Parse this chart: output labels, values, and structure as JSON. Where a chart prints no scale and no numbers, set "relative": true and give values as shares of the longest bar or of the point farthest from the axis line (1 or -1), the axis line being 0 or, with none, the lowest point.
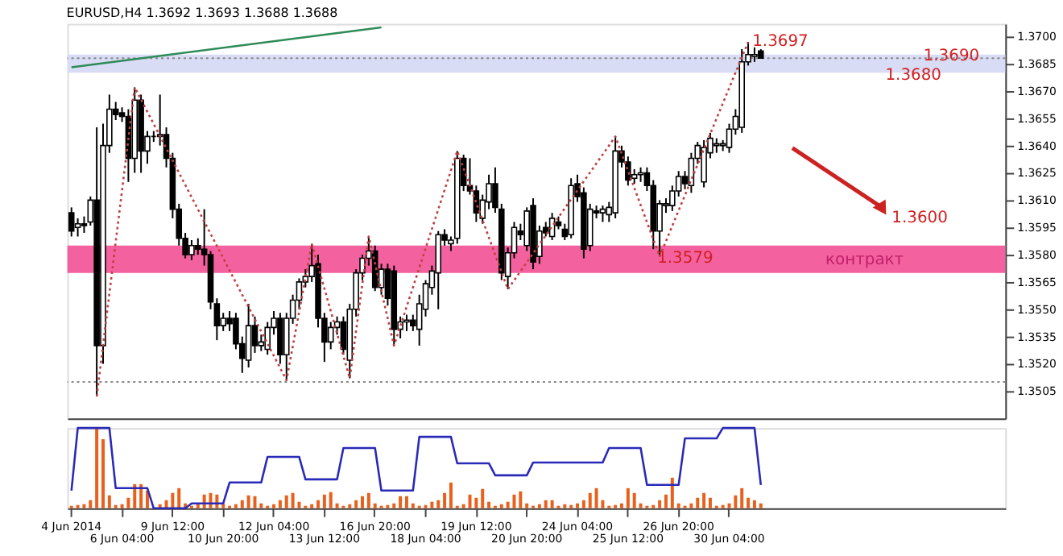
{
  "chart_data": [
    {
      "type": "candlestick",
      "title": "EURUSD,H4  1.3692 1.3693 1.3688 1.3688",
      "color": "#000000",
      "categories": [
        null,
        null,
        null,
        null,
        null,
        null,
        null,
        null,
        null,
        null,
        null,
        null,
        null,
        null,
        null,
        null,
        null,
        null,
        null,
        null,
        null,
        null,
        null,
        null,
        null,
        null,
        null,
        null,
        null,
        null,
        null,
        null,
        null,
        null,
        null,
        null,
        null,
        null,
        null,
        null,
        null,
        null,
        null,
        null,
        null,
        null,
        null,
        null,
        null,
        null,
        null,
        null,
        null,
        null,
        null,
        null,
        null,
        null,
        null,
        null,
        null,
        null,
        null,
        null,
        null,
        null,
        null,
        null,
        null,
        null,
        null,
        null,
        null,
        null,
        null,
        null,
        null,
        null,
        null,
        null,
        null,
        null,
        null,
        null,
        null,
        null,
        null,
        null,
        null,
        null,
        null,
        null,
        null,
        null,
        null,
        null,
        null,
        null,
        null,
        null,
        null,
        null,
        null,
        null,
        null,
        null,
        null,
        null,
        null,
        null,
        null,
        null,
        null,
        null,
        null,
        null,
        null,
        null,
        null,
        null,
        null,
        null,
        null,
        null,
        null,
        null,
        null,
        null,
        null,
        null,
        null,
        null,
        null,
        null,
        null,
        null,
        null,
        null,
        null,
        null,
        null,
        null,
        null,
        null,
        null,
        null,
        null,
        null
      ],
      "ohlc": [
        [
          1.3603,
          1.3606,
          1.359,
          1.3593
        ],
        [
          1.3595,
          1.36,
          1.359,
          1.3597
        ],
        [
          1.3597,
          1.3601,
          1.3592,
          1.3596
        ],
        [
          1.3598,
          1.3612,
          1.3596,
          1.361
        ],
        [
          1.361,
          1.365,
          1.3502,
          1.353
        ],
        [
          1.353,
          1.3652,
          1.352,
          1.364
        ],
        [
          1.364,
          1.3668,
          1.3636,
          1.366
        ],
        [
          1.366,
          1.3664,
          1.3654,
          1.3657
        ],
        [
          1.3658,
          1.3661,
          1.3653,
          1.3656
        ],
        [
          1.3656,
          1.366,
          1.362,
          1.3633
        ],
        [
          1.3633,
          1.3672,
          1.3625,
          1.3665
        ],
        [
          1.3665,
          1.3668,
          1.3625,
          1.3637
        ],
        [
          1.3637,
          1.3648,
          1.363,
          1.3645
        ],
        [
          1.3645,
          1.3648,
          1.3642,
          1.3645
        ],
        [
          1.3645,
          1.3668,
          1.364,
          1.3646
        ],
        [
          1.3646,
          1.365,
          1.3628,
          1.3633
        ],
        [
          1.3633,
          1.3636,
          1.36,
          1.3605
        ],
        [
          1.3605,
          1.3608,
          1.3585,
          1.3589
        ],
        [
          1.3589,
          1.3592,
          1.3578,
          1.358
        ],
        [
          1.358,
          1.3588,
          1.3577,
          1.3585
        ],
        [
          1.3585,
          1.3589,
          1.358,
          1.3583
        ],
        [
          1.3583,
          1.3605,
          1.3574,
          1.358
        ],
        [
          1.358,
          1.3582,
          1.355,
          1.3554
        ],
        [
          1.3553,
          1.3556,
          1.3533,
          1.3541
        ],
        [
          1.3541,
          1.3548,
          1.3538,
          1.3545
        ],
        [
          1.3545,
          1.3549,
          1.3538,
          1.3542
        ],
        [
          1.3545,
          1.3548,
          1.3528,
          1.3531
        ],
        [
          1.3531,
          1.3535,
          1.3515,
          1.3523
        ],
        [
          1.3522,
          1.3553,
          1.3518,
          1.3541
        ],
        [
          1.3541,
          1.3546,
          1.3526,
          1.353
        ],
        [
          1.353,
          1.3536,
          1.3527,
          1.3532
        ],
        [
          1.3528,
          1.3543,
          1.3525,
          1.354
        ],
        [
          1.354,
          1.3549,
          1.3536,
          1.3545
        ],
        [
          1.3545,
          1.3548,
          1.352,
          1.3525
        ],
        [
          1.3525,
          1.3548,
          1.3511,
          1.3545
        ],
        [
          1.3545,
          1.3558,
          1.3542,
          1.3555
        ],
        [
          1.3555,
          1.3567,
          1.355,
          1.3565
        ],
        [
          1.3565,
          1.3572,
          1.3562,
          1.3568
        ],
        [
          1.3568,
          1.3586,
          1.3565,
          1.3574
        ],
        [
          1.3575,
          1.358,
          1.354,
          1.3545
        ],
        [
          1.3545,
          1.3548,
          1.3521,
          1.3532
        ],
        [
          1.3532,
          1.3543,
          1.3528,
          1.354
        ],
        [
          1.354,
          1.3546,
          1.3536,
          1.3543
        ],
        [
          1.3543,
          1.3546,
          1.3525,
          1.3528
        ],
        [
          1.3522,
          1.3553,
          1.3512,
          1.355
        ],
        [
          1.355,
          1.3572,
          1.3546,
          1.357
        ],
        [
          1.357,
          1.358,
          1.3566,
          1.3578
        ],
        [
          1.3578,
          1.359,
          1.3574,
          1.3582
        ],
        [
          1.3582,
          1.3585,
          1.356,
          1.3562
        ],
        [
          1.3562,
          1.3575,
          1.3558,
          1.3572
        ],
        [
          1.3572,
          1.3575,
          1.3552,
          1.3556
        ],
        [
          1.3571,
          1.3574,
          1.353,
          1.3539
        ],
        [
          1.3539,
          1.3546,
          1.3534,
          1.3543
        ],
        [
          1.3543,
          1.3547,
          1.3538,
          1.3544
        ],
        [
          1.3544,
          1.3547,
          1.3538,
          1.3541
        ],
        [
          1.3539,
          1.3558,
          1.353,
          1.3553
        ],
        [
          1.355,
          1.3566,
          1.3546,
          1.3564
        ],
        [
          1.3562,
          1.3574,
          1.3558,
          1.3571
        ],
        [
          1.357,
          1.3593,
          1.355,
          1.3591
        ],
        [
          1.3591,
          1.3594,
          1.3585,
          1.3588
        ],
        [
          1.3586,
          1.359,
          1.3582,
          1.3588
        ],
        [
          1.3589,
          1.3637,
          1.3586,
          1.3633
        ],
        [
          1.3633,
          1.3635,
          1.3615,
          1.3618
        ],
        [
          1.3618,
          1.3633,
          1.3613,
          1.3615
        ],
        [
          1.3615,
          1.3618,
          1.3598,
          1.3603
        ],
        [
          1.36,
          1.3613,
          1.3597,
          1.361
        ],
        [
          1.3609,
          1.3624,
          1.3605,
          1.3619
        ],
        [
          1.3619,
          1.3628,
          1.3603,
          1.3606
        ],
        [
          1.3605,
          1.3608,
          1.3566,
          1.357
        ],
        [
          1.3568,
          1.3584,
          1.3561,
          1.3581
        ],
        [
          1.3581,
          1.3598,
          1.3578,
          1.3595
        ],
        [
          1.3593,
          1.3597,
          1.3588,
          1.3591
        ],
        [
          1.3585,
          1.3606,
          1.3582,
          1.3604
        ],
        [
          1.3607,
          1.3611,
          1.3572,
          1.3576
        ],
        [
          1.3579,
          1.3596,
          1.3575,
          1.3593
        ],
        [
          1.3595,
          1.3598,
          1.359,
          1.3592
        ],
        [
          1.359,
          1.3603,
          1.3588,
          1.36
        ],
        [
          1.3598,
          1.3601,
          1.3594,
          1.3596
        ],
        [
          1.3594,
          1.3597,
          1.3588,
          1.359
        ],
        [
          1.3591,
          1.3622,
          1.3589,
          1.3618
        ],
        [
          1.3619,
          1.3624,
          1.3609,
          1.3612
        ],
        [
          1.3614,
          1.3617,
          1.3578,
          1.3583
        ],
        [
          1.3585,
          1.3608,
          1.3582,
          1.3605
        ],
        [
          1.3604,
          1.3607,
          1.36,
          1.3603
        ],
        [
          1.3603,
          1.3607,
          1.3598,
          1.3605
        ],
        [
          1.3602,
          1.3609,
          1.3598,
          1.3606
        ],
        [
          1.3603,
          1.3645,
          1.36,
          1.3637
        ],
        [
          1.3637,
          1.364,
          1.3628,
          1.3631
        ],
        [
          1.3631,
          1.3634,
          1.3618,
          1.3621
        ],
        [
          1.3622,
          1.3627,
          1.3619,
          1.3624
        ],
        [
          1.3624,
          1.3628,
          1.362,
          1.3625
        ],
        [
          1.3625,
          1.3628,
          1.3615,
          1.3618
        ],
        [
          1.3618,
          1.3621,
          1.3583,
          1.3593
        ],
        [
          1.3593,
          1.361,
          1.3579,
          1.3608
        ],
        [
          1.3607,
          1.3611,
          1.3603,
          1.3608
        ],
        [
          1.3607,
          1.3618,
          1.3604,
          1.3615
        ],
        [
          1.3615,
          1.3626,
          1.3612,
          1.3623
        ],
        [
          1.3623,
          1.3626,
          1.3616,
          1.3619
        ],
        [
          1.3618,
          1.3636,
          1.3614,
          1.3633
        ],
        [
          1.3633,
          1.3642,
          1.363,
          1.364
        ],
        [
          1.362,
          1.3643,
          1.3617,
          1.3639
        ],
        [
          1.3636,
          1.3647,
          1.3633,
          1.3644
        ],
        [
          1.364,
          1.3644,
          1.3636,
          1.3641
        ],
        [
          1.364,
          1.3643,
          1.3637,
          1.3641
        ],
        [
          1.3639,
          1.3652,
          1.3636,
          1.3649
        ],
        [
          1.3649,
          1.366,
          1.3646,
          1.3656
        ],
        [
          1.365,
          1.3693,
          1.3647,
          1.3686
        ],
        [
          1.3686,
          1.3697,
          1.3684,
          1.369
        ],
        [
          1.3689,
          1.3694,
          1.3686,
          1.369
        ],
        [
          1.3692,
          1.3693,
          1.3688,
          1.3688
        ],
        null,
        null,
        null,
        null,
        null,
        null,
        null,
        null,
        null,
        null,
        null,
        null,
        null,
        null,
        null,
        null,
        null,
        null,
        null,
        null,
        null,
        null,
        null,
        null,
        null,
        null,
        null,
        null,
        null,
        null,
        null,
        null,
        null,
        null,
        null,
        null,
        null,
        null
      ],
      "series": [
        {
          "type": "line",
          "color": "#2e8b57",
          "line_style": "solid",
          "values": [
            1.3683,
            null,
            null,
            null,
            null,
            null,
            null,
            null,
            null,
            null,
            null,
            null,
            null,
            null,
            null,
            null,
            null,
            null,
            null,
            null,
            null,
            null,
            null,
            null,
            null,
            null,
            null,
            null,
            null,
            null,
            null,
            null,
            null,
            null,
            null,
            null,
            null,
            null,
            null,
            null,
            null,
            null,
            null,
            null,
            null,
            null,
            null,
            null,
            null,
            1.3705,
            null,
            null,
            null,
            null,
            null,
            null,
            null,
            null,
            null,
            null,
            null,
            null,
            null,
            null,
            null,
            null,
            null,
            null,
            null,
            null,
            null,
            null,
            null,
            null,
            null,
            null,
            null,
            null,
            null,
            null,
            null,
            null,
            null,
            null,
            null,
            null,
            null,
            null,
            null,
            null,
            null,
            null,
            null,
            null,
            null,
            null,
            null,
            null,
            null,
            null,
            null,
            null,
            null,
            null,
            null,
            null,
            null,
            null,
            null,
            null,
            null,
            null,
            null,
            null,
            null,
            null,
            null,
            null,
            null,
            null,
            null,
            null,
            null,
            null,
            null,
            null,
            null,
            null,
            null,
            null,
            null,
            null,
            null,
            null,
            null,
            null,
            null,
            null,
            null,
            null,
            null,
            null,
            null,
            null,
            null,
            null,
            null,
            null
          ]
        },
        {
          "type": "line",
          "color": "#c04040",
          "line_style": "dotted",
          "values": [
            null,
            null,
            null,
            null,
            1.3502,
            null,
            null,
            null,
            null,
            null,
            1.3672,
            null,
            null,
            null,
            null,
            null,
            null,
            null,
            null,
            null,
            null,
            null,
            null,
            null,
            null,
            null,
            null,
            null,
            null,
            null,
            null,
            null,
            null,
            null,
            1.3511,
            null,
            null,
            null,
            1.3586,
            null,
            null,
            null,
            null,
            null,
            1.3512,
            null,
            null,
            1.359,
            null,
            null,
            null,
            1.353,
            null,
            null,
            null,
            null,
            null,
            null,
            null,
            null,
            null,
            1.3637,
            null,
            null,
            null,
            null,
            null,
            null,
            null,
            1.3561,
            null,
            null,
            null,
            null,
            null,
            null,
            null,
            null,
            null,
            null,
            null,
            null,
            null,
            null,
            null,
            null,
            1.3645,
            null,
            null,
            null,
            null,
            null,
            null,
            1.3579,
            null,
            null,
            null,
            null,
            null,
            null,
            null,
            null,
            null,
            null,
            null,
            null,
            null,
            1.3697,
            null,
            null,
            null,
            null,
            null,
            null,
            null,
            null,
            null,
            null,
            null,
            null,
            null,
            null,
            null,
            null,
            null,
            null,
            null,
            null,
            null,
            null,
            null,
            null,
            null,
            null,
            null,
            null,
            null,
            null,
            null,
            null,
            null,
            null,
            null,
            null,
            null,
            null,
            null,
            null
          ]
        }
      ],
      "ylim": [
        1.349,
        1.3707
      ],
      "yticks": [
        {
          "value": 1.3505,
          "label": "1.3505"
        },
        {
          "value": 1.352,
          "label": "1.3520"
        },
        {
          "value": 1.3535,
          "label": "1.3535"
        },
        {
          "value": 1.355,
          "label": "1.3550"
        },
        {
          "value": 1.3565,
          "label": "1.3565"
        },
        {
          "value": 1.358,
          "label": "1.3580"
        },
        {
          "value": 1.3595,
          "label": "1.3595"
        },
        {
          "value": 1.361,
          "label": "1.3610"
        },
        {
          "value": 1.3625,
          "label": "1.3625"
        },
        {
          "value": 1.364,
          "label": "1.3640"
        },
        {
          "value": 1.3655,
          "label": "1.3655"
        },
        {
          "value": 1.367,
          "label": "1.3670"
        },
        {
          "value": 1.3685,
          "label": "1.3685"
        },
        {
          "value": 1.37,
          "label": "1.3700"
        }
      ],
      "tick_labels": "y",
      "ref_lines": [
        {
          "axis": "y",
          "value": 1.3688,
          "color": "#888888",
          "line_style": "dotted"
        },
        {
          "axis": "y",
          "value": 1.351,
          "color": "#888888",
          "line_style": "dotted"
        }
      ],
      "bands": [
        {
          "axis": "y",
          "from": 1.357,
          "to": 1.3585,
          "label": "контракт",
          "color": "#f4619f"
        },
        {
          "axis": "y",
          "from": 1.368,
          "to": 1.369,
          "color": "#d8dcf4"
        }
      ],
      "annotations": [
        "1.3697",
        "1.3690",
        "1.3680",
        "1.3600",
        "1.3579"
      ]
    },
    {
      "type": "bar",
      "relative": true,
      "tick_labels": "x",
      "categories": [
        "4 Jun 2014",
        null,
        null,
        null,
        null,
        null,
        null,
        null,
        "6 Jun 04:00",
        null,
        null,
        null,
        null,
        null,
        null,
        null,
        "9 Jun 12:00",
        null,
        null,
        null,
        null,
        null,
        null,
        null,
        "10 Jun 20:00",
        null,
        null,
        null,
        null,
        null,
        null,
        null,
        "12 Jun 04:00",
        null,
        null,
        null,
        null,
        null,
        null,
        null,
        "13 Jun 12:00",
        null,
        null,
        null,
        null,
        null,
        null,
        null,
        "16 Jun 20:00",
        null,
        null,
        null,
        null,
        null,
        null,
        null,
        "18 Jun 04:00",
        null,
        null,
        null,
        null,
        null,
        null,
        null,
        "19 Jun 12:00",
        null,
        null,
        null,
        null,
        null,
        null,
        null,
        "20 Jun 20:00",
        null,
        null,
        null,
        null,
        null,
        null,
        null,
        "24 Jun 04:00",
        null,
        null,
        null,
        null,
        null,
        null,
        null,
        "25 Jun 12:00",
        null,
        null,
        null,
        null,
        null,
        null,
        null,
        "26 Jun 20:00",
        null,
        null,
        null,
        null,
        null,
        null,
        null,
        "30 Jun 04:00",
        null,
        null,
        null,
        null,
        null,
        null,
        null,
        null,
        null,
        null,
        null,
        null,
        null,
        null,
        null,
        null,
        null,
        null,
        null,
        null,
        null,
        null,
        null,
        null,
        null,
        null,
        null,
        null,
        null,
        null,
        null,
        null,
        null,
        null,
        null,
        null,
        null,
        null,
        null,
        null,
        null,
        null,
        null
      ],
      "series": [
        {
          "type": "bar",
          "color": "#e8601c",
          "values": [
            0.03,
            0.04,
            0.05,
            0.1,
            1.0,
            0.86,
            0.16,
            0.04,
            0.05,
            0.13,
            0.3,
            0.3,
            0.22,
            null,
            0.05,
            0.1,
            0.19,
            0.25,
            0.06,
            0.03,
            0.05,
            0.17,
            0.19,
            0.17,
            0.06,
            0.03,
            0.05,
            0.1,
            0.16,
            0.15,
            0.06,
            0.03,
            0.05,
            0.1,
            0.16,
            0.19,
            0.08,
            0.03,
            0.05,
            0.1,
            0.17,
            0.2,
            0.06,
            0.03,
            0.05,
            0.1,
            0.15,
            0.19,
            0.06,
            0.03,
            0.04,
            0.06,
            0.15,
            0.15,
            0.06,
            0.03,
            0.04,
            0.08,
            0.1,
            0.19,
            0.32,
            0.03,
            0.05,
            0.17,
            0.13,
            0.24,
            0.08,
            0.03,
            0.05,
            0.08,
            0.17,
            0.21,
            0.06,
            0.03,
            0.05,
            0.1,
            0.1,
            0.03,
            0.05,
            0.04,
            0.06,
            0.1,
            0.19,
            0.25,
            0.1,
            0.03,
            0.04,
            0.06,
            0.25,
            0.19,
            0.06,
            0.03,
            0.04,
            0.1,
            0.17,
            0.38,
            0.06,
            0.03,
            0.06,
            0.13,
            0.19,
            0.13,
            0.03,
            0.04,
            0.06,
            0.16,
            0.25,
            0.13,
            0.1,
            0.06,
            null,
            null,
            null,
            null,
            null,
            null,
            null,
            null,
            null,
            null,
            null,
            null,
            null,
            null,
            null,
            null,
            null,
            null,
            null,
            null,
            null,
            null,
            null,
            null,
            null,
            null,
            null,
            null,
            null,
            null,
            null,
            null,
            null,
            null,
            null,
            null,
            null,
            null
          ]
        },
        {
          "type": "line",
          "color": "#2a2ab8",
          "values": [
            0.22,
            1.0,
            1.0,
            1.0,
            1.0,
            1.0,
            1.0,
            0.25,
            0.25,
            0.25,
            0.25,
            0.25,
            0.25,
            0,
            0,
            0,
            0,
            0,
            0,
            0.06,
            0.06,
            0.06,
            0.06,
            0.06,
            0.06,
            0.32,
            0.32,
            0.32,
            0.32,
            0.32,
            0.32,
            0.64,
            0.64,
            0.64,
            0.64,
            0.64,
            0.64,
            0.36,
            0.36,
            0.36,
            0.36,
            0.36,
            0.36,
            0.75,
            0.75,
            0.75,
            0.75,
            0.75,
            0.75,
            0.22,
            0.22,
            0.22,
            0.22,
            0.22,
            0.22,
            0.89,
            0.89,
            0.89,
            0.89,
            0.89,
            0.89,
            0.56,
            0.56,
            0.56,
            0.56,
            0.56,
            0.56,
            0.41,
            0.41,
            0.41,
            0.41,
            0.41,
            0.41,
            0.57,
            0.57,
            0.57,
            0.57,
            0.57,
            0.57,
            0.57,
            0.57,
            0.57,
            0.57,
            0.57,
            0.57,
            0.75,
            0.75,
            0.75,
            0.75,
            0.75,
            0.75,
            0.29,
            0.29,
            0.29,
            0.29,
            0.29,
            0.29,
            0.87,
            0.87,
            0.87,
            0.87,
            0.87,
            0.87,
            1.0,
            1.0,
            1.0,
            1.0,
            1.0,
            1.0,
            0.29,
            null,
            null,
            null,
            null,
            null,
            null,
            null,
            null,
            null,
            null,
            null,
            null,
            null,
            null,
            null,
            null,
            null,
            null,
            null,
            null,
            null,
            null,
            null,
            null,
            null,
            null,
            null,
            null,
            null,
            null,
            null,
            null,
            null,
            null,
            null,
            null,
            null,
            null
          ]
        }
      ]
    }
  ]
}
